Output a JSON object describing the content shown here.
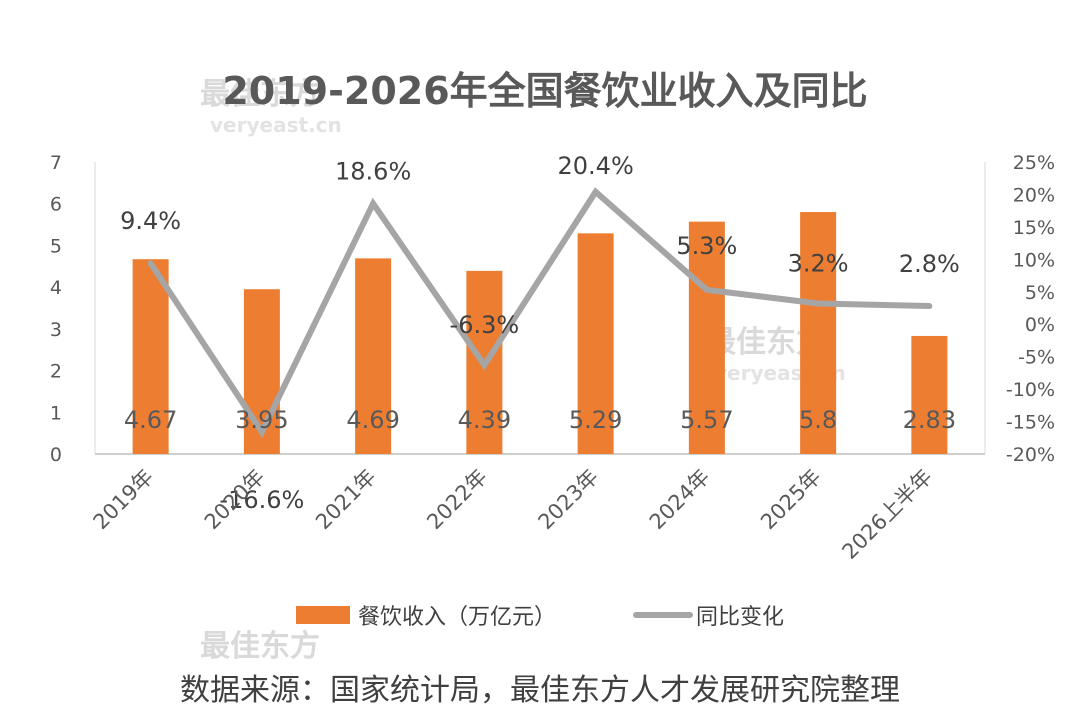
{
  "chart_data": {
    "type": "bar",
    "title": "2019-2026年全国餐饮业收入及同比",
    "categories": [
      "2019年",
      "2020年",
      "2021年",
      "2022年",
      "2023年",
      "2024年",
      "2025年",
      "2026上半年"
    ],
    "series": [
      {
        "name": "餐饮收入（万亿元）",
        "type": "bar",
        "axis": "left",
        "color": "#ed7d31",
        "values": [
          4.67,
          3.95,
          4.69,
          4.39,
          5.29,
          5.57,
          5.8,
          2.83
        ],
        "labels": [
          "4.67",
          "3.95",
          "4.69",
          "4.39",
          "5.29",
          "5.57",
          "5.8",
          "2.83"
        ]
      },
      {
        "name": "同比变化",
        "type": "line",
        "axis": "right",
        "color": "#a5a5a5",
        "values": [
          9.4,
          -16.6,
          18.6,
          -6.3,
          20.4,
          5.3,
          3.2,
          2.8
        ],
        "labels": [
          "9.4%",
          "-16.6%",
          "18.6%",
          "-6.3%",
          "20.4%",
          "5.3%",
          "3.2%",
          "2.8%"
        ]
      }
    ],
    "y_left": {
      "ylim": [
        0,
        7
      ],
      "ticks": [
        "0",
        "1",
        "2",
        "3",
        "4",
        "5",
        "6",
        "7"
      ]
    },
    "y_right": {
      "ylim": [
        -20,
        25
      ],
      "ticks": [
        "-20%",
        "-15%",
        "-10%",
        "-5%",
        "0%",
        "5%",
        "10%",
        "15%",
        "20%",
        "25%"
      ]
    },
    "legend_position": "bottom",
    "grid": false
  },
  "watermark": {
    "brand": "最佳东方",
    "site": "veryeast.cn"
  },
  "source_note": "数据来源：国家统计局，最佳东方人才发展研究院整理"
}
